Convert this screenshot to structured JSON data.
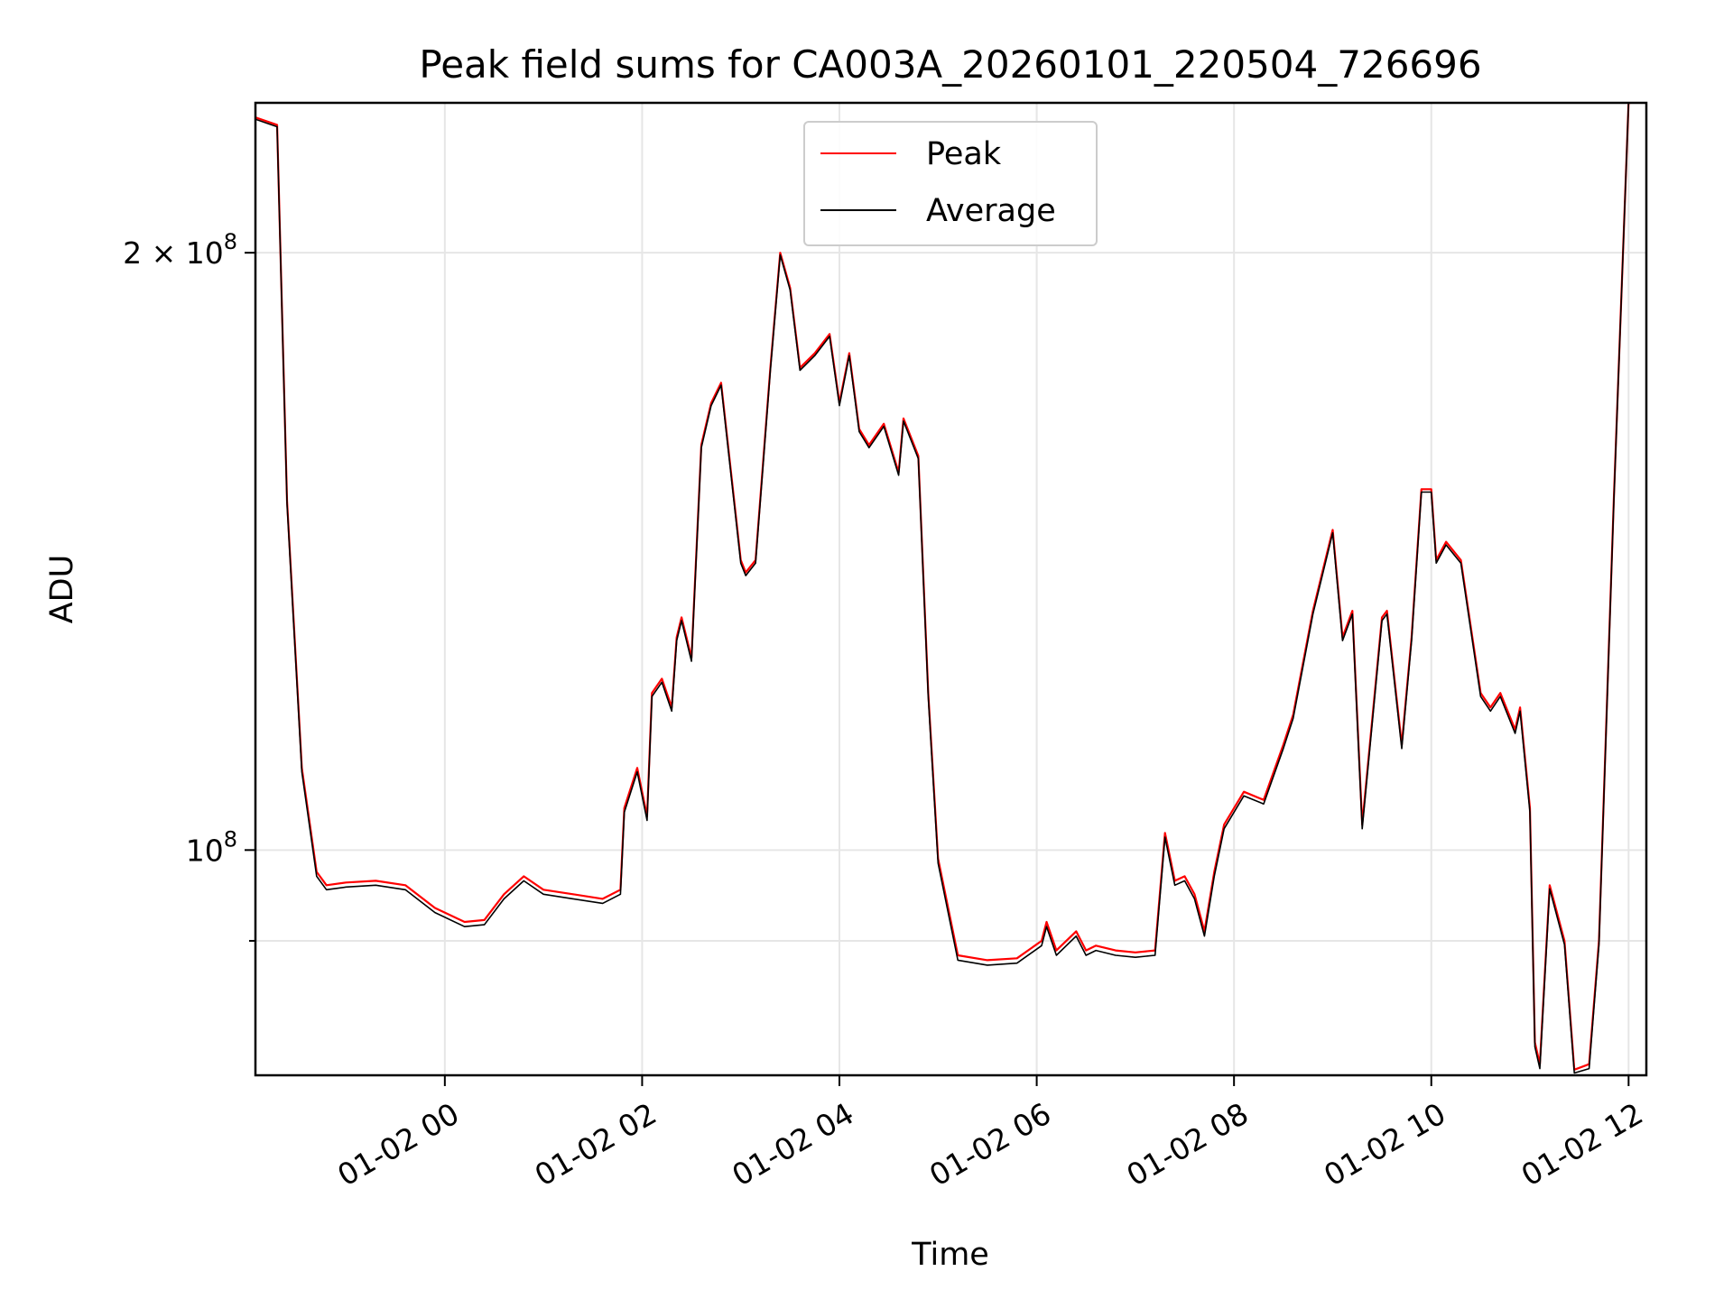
{
  "chart_data": {
    "type": "line",
    "title": "Peak field sums for CA003A_20260101_220504_726696",
    "xlabel": "Time",
    "ylabel": "ADU",
    "yscale": "log",
    "ylim": [
      77000000,
      238000000
    ],
    "xlim_hours": [
      22.08,
      36.18
    ],
    "grid": true,
    "legend_position": "upper center",
    "x_ticks": [
      {
        "hour": 24,
        "label": "01-02 00"
      },
      {
        "hour": 26,
        "label": "01-02 02"
      },
      {
        "hour": 28,
        "label": "01-02 04"
      },
      {
        "hour": 30,
        "label": "01-02 06"
      },
      {
        "hour": 32,
        "label": "01-02 08"
      },
      {
        "hour": 34,
        "label": "01-02 10"
      },
      {
        "hour": 36,
        "label": "01-02 12"
      }
    ],
    "y_ticks": [
      {
        "value": 200000000,
        "base": "2 × 10",
        "exp": "8"
      },
      {
        "value": 100000000,
        "base": "10",
        "exp": "8"
      }
    ],
    "y_minor_ticks": [
      90000000
    ],
    "x_hours": [
      22.08,
      22.3,
      22.4,
      22.55,
      22.7,
      22.8,
      23.0,
      23.3,
      23.6,
      23.9,
      24.2,
      24.4,
      24.6,
      24.8,
      25.0,
      25.3,
      25.6,
      25.78,
      25.82,
      25.95,
      26.05,
      26.1,
      26.2,
      26.3,
      26.35,
      26.4,
      26.5,
      26.6,
      26.7,
      26.8,
      27.0,
      27.05,
      27.15,
      27.3,
      27.4,
      27.5,
      27.6,
      27.75,
      27.9,
      28.0,
      28.1,
      28.2,
      28.3,
      28.45,
      28.6,
      28.65,
      28.8,
      28.9,
      29.0,
      29.2,
      29.5,
      29.8,
      30.05,
      30.1,
      30.2,
      30.4,
      30.5,
      30.6,
      30.8,
      31.0,
      31.2,
      31.3,
      31.4,
      31.5,
      31.6,
      31.7,
      31.8,
      31.9,
      32.1,
      32.3,
      32.5,
      32.6,
      32.8,
      33.0,
      33.1,
      33.2,
      33.3,
      33.5,
      33.55,
      33.7,
      33.8,
      33.9,
      34.0,
      34.05,
      34.15,
      34.3,
      34.5,
      34.6,
      34.7,
      34.85,
      34.9,
      35.0,
      35.05,
      35.1,
      35.2,
      35.35,
      35.45,
      35.6,
      35.7,
      35.85,
      36.0,
      36.02
    ],
    "series": [
      {
        "name": "Peak",
        "color": "#ff0000",
        "values": [
          234000000,
          232000000,
          150000000,
          110000000,
          97500000,
          96000000,
          96300000,
          96500000,
          96000000,
          93500000,
          92000000,
          92200000,
          95000000,
          97000000,
          95500000,
          95000000,
          94500000,
          95500000,
          105000000,
          110000000,
          104000000,
          120000000,
          122000000,
          118000000,
          128000000,
          131000000,
          125000000,
          160000000,
          168000000,
          172000000,
          140000000,
          138000000,
          140000000,
          175000000,
          200000000,
          192000000,
          175000000,
          178000000,
          182000000,
          168000000,
          178000000,
          163000000,
          160000000,
          164000000,
          155000000,
          165000000,
          158000000,
          120000000,
          99000000,
          88500000,
          88000000,
          88200000,
          90000000,
          92000000,
          89000000,
          91000000,
          89000000,
          89500000,
          89000000,
          88800000,
          89000000,
          102000000,
          96500000,
          97000000,
          95000000,
          91000000,
          97500000,
          103000000,
          107000000,
          106000000,
          113000000,
          117000000,
          132000000,
          145000000,
          128000000,
          132000000,
          103000000,
          131000000,
          132000000,
          113000000,
          128000000,
          152000000,
          152000000,
          140000000,
          143000000,
          140000000,
          120000000,
          118000000,
          120000000,
          115000000,
          118000000,
          105000000,
          80000000,
          78000000,
          96000000,
          90000000,
          77500000,
          78000000,
          90000000,
          150000000,
          238000000,
          238000000
        ]
      },
      {
        "name": "Average",
        "color": "#000000",
        "values": [
          233500000,
          231500000,
          149500000,
          109500000,
          97000000,
          95500000,
          95800000,
          96000000,
          95500000,
          93000000,
          91500000,
          91700000,
          94500000,
          96500000,
          95000000,
          94500000,
          94000000,
          95000000,
          104500000,
          109500000,
          103500000,
          119500000,
          121500000,
          117500000,
          127500000,
          130500000,
          124500000,
          159500000,
          167500000,
          171500000,
          139500000,
          137500000,
          139500000,
          174500000,
          199500000,
          191500000,
          174500000,
          177500000,
          181500000,
          167500000,
          177500000,
          162500000,
          159500000,
          163500000,
          154500000,
          164500000,
          157500000,
          119500000,
          98500000,
          88000000,
          87500000,
          87700000,
          89500000,
          91500000,
          88500000,
          90500000,
          88500000,
          89000000,
          88500000,
          88300000,
          88500000,
          101500000,
          96000000,
          96500000,
          94500000,
          90500000,
          97000000,
          102500000,
          106500000,
          105500000,
          112500000,
          116500000,
          131500000,
          144500000,
          127500000,
          131500000,
          102500000,
          130500000,
          131500000,
          112500000,
          127500000,
          151500000,
          151500000,
          139500000,
          142500000,
          139500000,
          119500000,
          117500000,
          119500000,
          114500000,
          117500000,
          104500000,
          79600000,
          77600000,
          95600000,
          89600000,
          77200000,
          77600000,
          89600000,
          149500000,
          238000000,
          238000000
        ]
      }
    ]
  }
}
